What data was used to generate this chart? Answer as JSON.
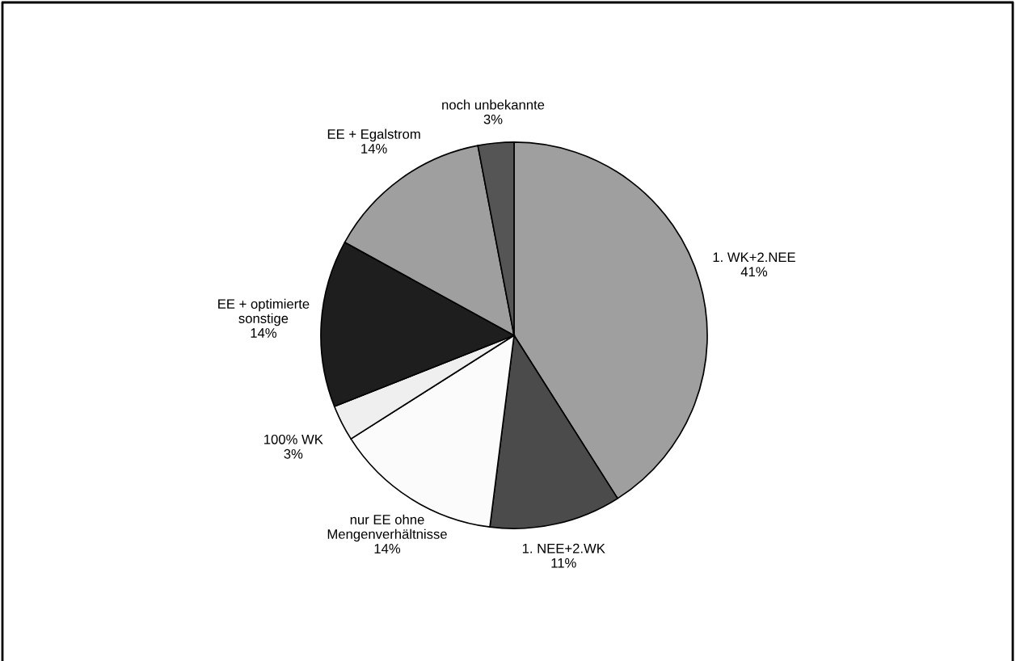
{
  "chart_data": {
    "type": "pie",
    "categories": [
      "1. WK+2.NEE",
      "1. NEE+2.WK",
      "nur EE ohne\nMengenverhältnisse",
      "100% WK",
      "EE + optimierte\nsonstige",
      "EE + Egalstrom",
      "noch unbekannte"
    ],
    "values": [
      41,
      11,
      14,
      3,
      14,
      14,
      3
    ],
    "value_labels": [
      "41%",
      "11%",
      "14%",
      "3%",
      "14%",
      "14%",
      "3%"
    ],
    "colors": [
      "#9f9f9f",
      "#4b4b4b",
      "#fbfbfb",
      "#efefef",
      "#1e1e1e",
      "#9f9f9f",
      "#555555"
    ]
  }
}
